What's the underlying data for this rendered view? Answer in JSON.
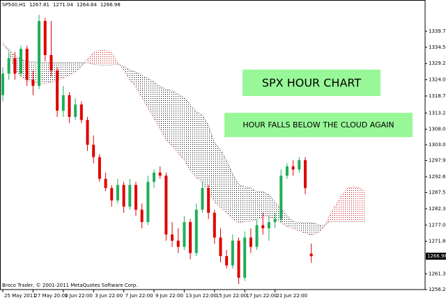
{
  "chart_data": {
    "type": "candlestick",
    "symbol": "SP500,H1",
    "categories": [
      "25 May 2011",
      null,
      null,
      null,
      null,
      "27 May 20:00",
      null,
      null,
      null,
      null,
      "1 Jun 22:00",
      null,
      null,
      null,
      null,
      "3 Jun 22:00",
      null,
      null,
      null,
      null,
      "7 Jun 22:00",
      null,
      null,
      null,
      null,
      "9 Jun 22:00",
      null,
      null,
      null,
      null,
      "13 Jun 22:00",
      null,
      null,
      null,
      null,
      "15 Jun 22:00",
      null,
      null,
      null,
      null,
      "17 Jun 22:00",
      null,
      null,
      null,
      null,
      "21 Jun 22:00",
      null,
      null,
      null,
      null,
      null,
      null,
      null,
      null,
      null,
      null,
      null,
      null,
      null,
      null,
      null
    ],
    "open": [
      1319,
      1326,
      1331,
      1326,
      1334,
      1324,
      1322,
      1343,
      1332,
      1327,
      1314,
      1319,
      1312,
      1316,
      1311,
      1303,
      1299,
      1292,
      1289,
      1285,
      1290,
      1283,
      1290,
      1282,
      1278,
      1291,
      1294,
      1293,
      1274,
      1272,
      1270,
      1278,
      1268,
      1282,
      1289,
      1281,
      1273,
      1267,
      1264,
      1272,
      1260,
      1273,
      1270,
      1277,
      1276,
      1278,
      1279,
      1293,
      1296,
      1295,
      1298,
      1267.81,
      null,
      null,
      null,
      null,
      null,
      null,
      null,
      null,
      null
    ],
    "high": [
      1328,
      1333,
      1333,
      1335,
      1335,
      1327,
      1345,
      1344,
      1343,
      1328,
      1322,
      1320,
      1318,
      1317,
      1312,
      1306,
      1300,
      1294,
      1290,
      1292,
      1291,
      1292,
      1291,
      1284,
      1293,
      1295,
      1296,
      1294,
      1278,
      1276,
      1280,
      1279,
      1284,
      1291,
      1290,
      1282,
      1276,
      1269,
      1274,
      1273,
      1275,
      1276,
      1279,
      1281,
      1280,
      1281,
      1295,
      1297,
      1298,
      1299,
      1299,
      1271.04,
      null,
      null,
      null,
      null,
      null,
      null,
      null,
      null,
      null
    ],
    "low": [
      1317,
      1324,
      1324,
      1325,
      1322,
      1319,
      1321,
      1330,
      1325,
      1312,
      1312,
      1310,
      1311,
      1310,
      1301,
      1297,
      1291,
      1288,
      1283,
      1284,
      1281,
      1282,
      1280,
      1276,
      1277,
      1289,
      1292,
      1272,
      1270,
      1268,
      1269,
      1266,
      1267,
      1281,
      1279,
      1271,
      1265,
      1263,
      1263,
      1258,
      1259,
      1268,
      1269,
      1274,
      1272,
      1276,
      1278,
      1292,
      1293,
      1294,
      1287,
      1264.84,
      null,
      null,
      null,
      null,
      null,
      null,
      null,
      null,
      null
    ],
    "close": [
      1326,
      1331,
      1326,
      1334,
      1324,
      1322,
      1343,
      1332,
      1327,
      1314,
      1319,
      1312,
      1316,
      1311,
      1303,
      1299,
      1292,
      1289,
      1285,
      1290,
      1283,
      1290,
      1282,
      1278,
      1291,
      1294,
      1293,
      1274,
      1272,
      1270,
      1278,
      1268,
      1282,
      1289,
      1281,
      1273,
      1267,
      1264,
      1272,
      1260,
      1273,
      1270,
      1277,
      1276,
      1278,
      1279,
      1293,
      1296,
      1295,
      1298,
      1289,
      1266.98,
      null,
      null,
      null,
      null,
      null,
      null,
      null,
      null,
      null
    ],
    "up_color": "#1fae5a",
    "down_color": "#e00000",
    "cloud": {
      "span_a": {
        "color": "#d00000",
        "values": [
          1336.2,
          1332.8,
          1327.2,
          1324.9,
          1323.8,
          1323.2,
          1322.7,
          1322.7,
          1323.2,
          1323.8,
          1324.5,
          1325.4,
          1326.5,
          1328.3,
          1330.6,
          1332.8,
          1333.5,
          1333.5,
          1332.8,
          1329.5,
          1327.2,
          1323.8,
          1321.6,
          1318.2,
          1314.9,
          1311.5,
          1308.1,
          1304.7,
          1302.5,
          1300.3,
          1298.0,
          1294.6,
          1292.4,
          1290.8,
          1287.9,
          1284.5,
          1282.7,
          1281.1,
          1278.9,
          1277.8,
          1278.2,
          1278.2,
          1278.9,
          1279.6,
          1279.6,
          1278.9,
          1277.8,
          1276.6,
          1276.0,
          1275.1,
          1274.5,
          1273.8,
          1274.5,
          1276.0,
          1280.0,
          1283.4,
          1286.8,
          1289.0,
          1289.5,
          1289.0,
          1287.9
        ]
      },
      "span_b": {
        "color": "#000000",
        "values": [
          1335.3,
          1334.0,
          1331.7,
          1330.6,
          1329.9,
          1329.9,
          1329.5,
          1329.5,
          1329.5,
          1329.5,
          1329.5,
          1329.5,
          1329.5,
          1329.5,
          1329.5,
          1329.0,
          1328.8,
          1328.8,
          1328.8,
          1329.0,
          1328.3,
          1327.2,
          1326.5,
          1325.4,
          1324.5,
          1323.2,
          1321.8,
          1320.9,
          1320.5,
          1319.3,
          1318.2,
          1316.0,
          1313.7,
          1312.6,
          1309.3,
          1303.6,
          1301.4,
          1298.0,
          1293.5,
          1290.1,
          1289.5,
          1289.0,
          1287.9,
          1287.9,
          1286.8,
          1284.5,
          1282.3,
          1280.0,
          1278.2,
          1277.8,
          1277.8,
          1277.8,
          1277.3,
          1276.6,
          1278.2,
          1278.2,
          1278.2,
          1278.2,
          1278.2,
          1278.2,
          1278.2
        ]
      }
    },
    "ylim": [
      1255.3,
      1349.1
    ],
    "yticks": [
      {
        "value": 1339.7,
        "label": "1339.70"
      },
      {
        "value": 1334.5,
        "label": "1334.50"
      },
      1329.25,
      {
        "value": 1324,
        "label": "1324.00"
      },
      1318.75,
      1313.25,
      {
        "value": 1308,
        "label": "1308.00"
      },
      {
        "value": 1303,
        "label": "1303.00"
      },
      {
        "value": 1297.9,
        "label": "1297.90"
      },
      1292.65,
      1287.55,
      {
        "value": 1282.3,
        "label": "1282.30"
      },
      1277.05,
      {
        "value": 1271.8,
        "label": "1271.80"
      },
      {
        "value": 1261.3,
        "label": "1261.30"
      },
      {
        "value": 1256.2,
        "label": "1256.20"
      }
    ],
    "annotations": [
      "SPX HOUR CHART",
      "HOUR FALLS BELOW THE CLOUD AGAIN"
    ],
    "footer": "Broco Trader, © 2001-2011 MetaQuotes Software Corp."
  }
}
